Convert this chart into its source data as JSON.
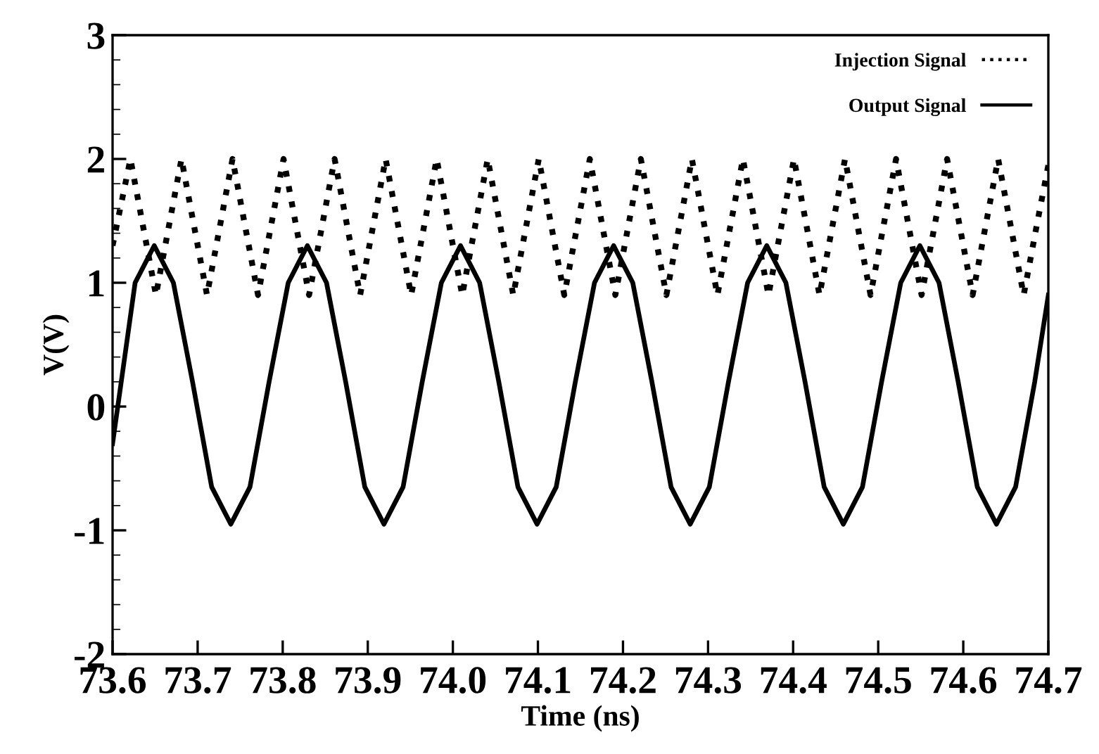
{
  "chart_data": {
    "type": "line",
    "xlabel": "Time (ns)",
    "ylabel": "V(V)",
    "xlim": [
      73.6,
      74.7
    ],
    "xticks": [
      {
        "value": 73.6,
        "label": "73.6"
      },
      {
        "value": 73.7,
        "label": "73.7"
      },
      {
        "value": 73.8,
        "label": "73.8"
      },
      {
        "value": 73.9,
        "label": "73.9"
      },
      {
        "value": 74.0,
        "label": "74.0"
      },
      {
        "value": 74.1,
        "label": "74.1"
      },
      {
        "value": 74.2,
        "label": "74.2"
      },
      {
        "value": 74.3,
        "label": "74.3"
      },
      {
        "value": 74.4,
        "label": "74.4"
      },
      {
        "value": 74.5,
        "label": "74.5"
      },
      {
        "value": 74.6,
        "label": "74.6"
      },
      {
        "value": 74.7,
        "label": "74.7"
      }
    ],
    "ylim": [
      -2,
      3
    ],
    "yticks": [
      -2,
      -1,
      0,
      1,
      2,
      3
    ],
    "grid": false,
    "legend": "top right",
    "marker": "none",
    "series": [
      {
        "name": "Injection Signal",
        "color": "#000000",
        "line_style": "dotted",
        "x": [
          73.6,
          73.621,
          73.636,
          73.651,
          73.666,
          73.681,
          73.696,
          73.711,
          73.726,
          73.741,
          73.756,
          73.771,
          73.786,
          73.801,
          73.816,
          73.831,
          73.846,
          73.861,
          73.876,
          73.891,
          73.906,
          73.921,
          73.936,
          73.951,
          73.966,
          73.981,
          73.996,
          74.011,
          74.026,
          74.041,
          74.056,
          74.071,
          74.086,
          74.101,
          74.116,
          74.131,
          74.146,
          74.161,
          74.176,
          74.191,
          74.206,
          74.221,
          74.236,
          74.251,
          74.266,
          74.281,
          74.296,
          74.311,
          74.326,
          74.341,
          74.356,
          74.371,
          74.386,
          74.401,
          74.416,
          74.431,
          74.446,
          74.461,
          74.476,
          74.491,
          74.506,
          74.521,
          74.536,
          74.551,
          74.566,
          74.581,
          74.596,
          74.611,
          74.626,
          74.641,
          74.656,
          74.671,
          74.686,
          74.7
        ],
        "values": [
          1.3,
          2,
          1.45,
          0.9,
          1.45,
          2,
          1.45,
          0.9,
          1.45,
          2,
          1.45,
          0.9,
          1.45,
          2,
          1.45,
          0.9,
          1.45,
          2,
          1.45,
          0.9,
          1.45,
          2,
          1.45,
          0.9,
          1.45,
          2,
          1.45,
          0.9,
          1.45,
          2,
          1.45,
          0.9,
          1.45,
          2,
          1.45,
          0.9,
          1.45,
          2,
          1.45,
          0.9,
          1.45,
          2,
          1.45,
          0.9,
          1.45,
          2,
          1.45,
          0.9,
          1.45,
          2,
          1.45,
          0.9,
          1.45,
          2,
          1.45,
          0.9,
          1.45,
          2,
          1.45,
          0.9,
          1.45,
          2,
          1.45,
          0.9,
          1.45,
          2,
          1.45,
          0.9,
          1.45,
          2,
          1.45,
          0.9,
          1.45,
          1.95
        ]
      },
      {
        "name": "Output Signal",
        "color": "#000000",
        "line_style": "solid",
        "x": [
          73.6,
          73.6265,
          73.649,
          73.6715,
          73.694,
          73.7165,
          73.739,
          73.7615,
          73.784,
          73.8065,
          73.829,
          73.8515,
          73.874,
          73.8965,
          73.919,
          73.9415,
          73.964,
          73.9865,
          74.009,
          74.0315,
          74.054,
          74.0765,
          74.099,
          74.1215,
          74.144,
          74.1665,
          74.189,
          74.2115,
          74.234,
          74.2565,
          74.279,
          74.3015,
          74.324,
          74.3465,
          74.369,
          74.3915,
          74.414,
          74.4365,
          74.459,
          74.4815,
          74.504,
          74.5265,
          74.549,
          74.5715,
          74.594,
          74.6165,
          74.639,
          74.6615,
          74.684,
          74.7
        ],
        "values": [
          -0.3,
          1.0,
          1.3,
          1.0,
          0.2,
          -0.65,
          -0.95,
          -0.65,
          0.2,
          1.0,
          1.3,
          1.0,
          0.2,
          -0.65,
          -0.95,
          -0.65,
          0.2,
          1.0,
          1.3,
          1.0,
          0.2,
          -0.65,
          -0.95,
          -0.65,
          0.2,
          1.0,
          1.3,
          1.0,
          0.2,
          -0.65,
          -0.95,
          -0.65,
          0.2,
          1.0,
          1.3,
          1.0,
          0.2,
          -0.65,
          -0.95,
          -0.65,
          0.2,
          1.0,
          1.3,
          1.0,
          0.2,
          -0.65,
          -0.95,
          -0.65,
          0.2,
          0.9
        ]
      }
    ]
  }
}
